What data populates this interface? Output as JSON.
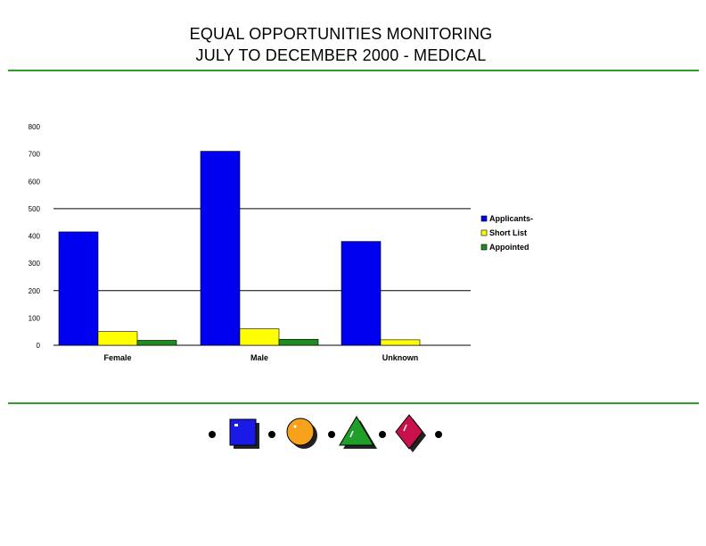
{
  "header": {
    "title_line1": "EQUAL OPPORTUNITIES MONITORING",
    "title_line2": "JULY TO DECEMBER 2000 - MEDICAL"
  },
  "colors": {
    "rule": "#2e9b2e",
    "applicants": "#0000f0",
    "short_list": "#ffff00",
    "appointed": "#1f8c1f"
  },
  "footer": {
    "icons": [
      "bullet-dot-icon",
      "blue-square-icon",
      "bullet-dot-icon",
      "orange-circle-icon",
      "bullet-dot-icon",
      "green-triangle-icon",
      "bullet-dot-icon",
      "red-diamond-icon",
      "bullet-dot-icon"
    ]
  },
  "chart_data": {
    "type": "bar",
    "categories": [
      "Female",
      "Male",
      "Unknown"
    ],
    "series": [
      {
        "name": "Applicants",
        "values": [
          415,
          710,
          380
        ]
      },
      {
        "name": "Short List",
        "values": [
          50,
          60,
          20
        ]
      },
      {
        "name": "Appointed",
        "values": [
          18,
          22,
          0
        ]
      }
    ],
    "legend_labels": [
      "Applicants-",
      "Short List",
      "Appointed"
    ],
    "yticks": [
      "0",
      "100",
      "200",
      "300",
      "400",
      "500",
      "600",
      "700",
      "800"
    ],
    "ylim": [
      0,
      800
    ],
    "gridlines_at": [
      200,
      500
    ],
    "legend_position": "right"
  }
}
